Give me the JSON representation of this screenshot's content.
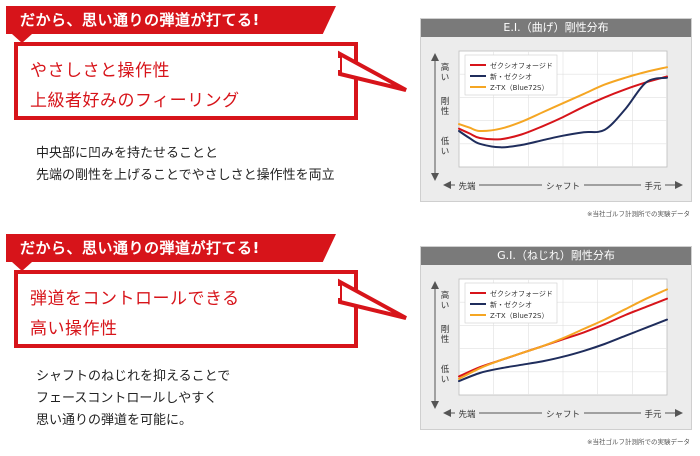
{
  "sections": [
    {
      "banner": "だから、思い通りの弾道が打てる!",
      "bubble_lines": [
        "やさしさと操作性",
        "上級者好みのフィーリング"
      ],
      "body_lines": [
        "中央部に凹みを持たせることと",
        "先端の剛性を上げることでやさしさと操作性を両立"
      ],
      "chart_title": "E.I.（曲げ）剛性分布",
      "footnote": "※当社ゴルフ計測所での実験データ"
    },
    {
      "banner": "だから、思い通りの弾道が打てる!",
      "bubble_lines": [
        "弾道をコントロールできる",
        "高い操作性"
      ],
      "body_lines": [
        "シャフトのねじれを抑えることで",
        "フェースコントロールしやすく",
        "思い通りの弾道を可能に。"
      ],
      "chart_title": "G.I.（ねじれ）剛性分布",
      "footnote": "※当社ゴルフ計測所での実験データ"
    }
  ],
  "chart_data": [
    {
      "type": "line",
      "title": "E.I.（曲げ）剛性分布",
      "xlabel": "シャフト",
      "x_ticks": [
        "先端",
        "シャフト",
        "手元"
      ],
      "ylabel": "剛性",
      "y_ticks": [
        "低い",
        "剛性",
        "高い"
      ],
      "grid": true,
      "legend": "top-left",
      "x": [
        0,
        0.05,
        0.1,
        0.2,
        0.3,
        0.4,
        0.5,
        0.6,
        0.7,
        0.8,
        0.9,
        1.0
      ],
      "xlim": [
        0,
        1
      ],
      "ylim": [
        0,
        1
      ],
      "series": [
        {
          "name": "ゼクシオフォージド",
          "color": "#d7141a",
          "values": [
            0.33,
            0.29,
            0.25,
            0.24,
            0.28,
            0.35,
            0.43,
            0.52,
            0.6,
            0.67,
            0.73,
            0.78
          ]
        },
        {
          "name": "新・ゼクシオ",
          "color": "#1f2d5c",
          "values": [
            0.31,
            0.25,
            0.2,
            0.17,
            0.19,
            0.23,
            0.27,
            0.3,
            0.32,
            0.5,
            0.73,
            0.77
          ]
        },
        {
          "name": "Z-TX（Blue72S）",
          "color": "#f5a623",
          "values": [
            0.37,
            0.34,
            0.31,
            0.33,
            0.39,
            0.47,
            0.55,
            0.63,
            0.71,
            0.77,
            0.82,
            0.86
          ]
        }
      ]
    },
    {
      "type": "line",
      "title": "G.I.（ねじれ）剛性分布",
      "xlabel": "シャフト",
      "x_ticks": [
        "先端",
        "シャフト",
        "手元"
      ],
      "ylabel": "剛性",
      "y_ticks": [
        "低い",
        "剛性",
        "高い"
      ],
      "grid": true,
      "legend": "top-left",
      "x": [
        0,
        0.1,
        0.2,
        0.3,
        0.4,
        0.5,
        0.6,
        0.7,
        0.8,
        0.9,
        1.0
      ],
      "xlim": [
        0,
        1
      ],
      "ylim": [
        0,
        1
      ],
      "series": [
        {
          "name": "ゼクシオフォージド",
          "color": "#d7141a",
          "values": [
            0.16,
            0.24,
            0.3,
            0.36,
            0.42,
            0.48,
            0.54,
            0.61,
            0.69,
            0.76,
            0.83
          ]
        },
        {
          "name": "新・ゼクシオ",
          "color": "#1f2d5c",
          "values": [
            0.12,
            0.19,
            0.23,
            0.26,
            0.29,
            0.33,
            0.38,
            0.44,
            0.51,
            0.58,
            0.65
          ]
        },
        {
          "name": "Z-TX（Blue72S）",
          "color": "#f5a623",
          "values": [
            0.14,
            0.23,
            0.3,
            0.36,
            0.42,
            0.49,
            0.57,
            0.65,
            0.74,
            0.83,
            0.91
          ]
        }
      ]
    }
  ]
}
